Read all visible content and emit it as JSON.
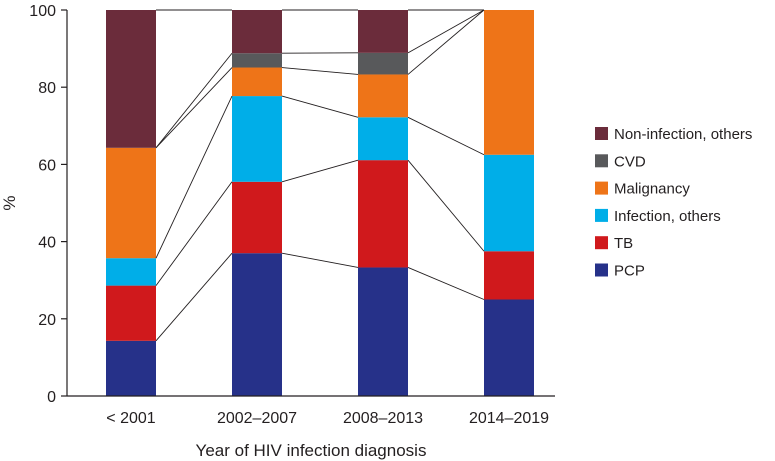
{
  "chart_data": {
    "type": "bar",
    "stacked": true,
    "categories": [
      "< 2001",
      "2002–2007",
      "2008–2013",
      "2014–2019"
    ],
    "series": [
      {
        "name": "PCP",
        "color": "#263189",
        "values": [
          14.3,
          37.0,
          33.3,
          25.0
        ]
      },
      {
        "name": "TB",
        "color": "#d0191c",
        "values": [
          14.3,
          18.5,
          27.8,
          12.5
        ]
      },
      {
        "name": "Infection, others",
        "color": "#00aee8",
        "values": [
          7.1,
          22.2,
          11.1,
          25.0
        ]
      },
      {
        "name": "Malignancy",
        "color": "#ee7418",
        "values": [
          28.6,
          7.4,
          11.1,
          37.5
        ]
      },
      {
        "name": "CVD",
        "color": "#58595b",
        "values": [
          0,
          3.7,
          5.6,
          0
        ]
      },
      {
        "name": "Non-infection, others",
        "color": "#6b2c3b",
        "values": [
          35.7,
          11.2,
          11.1,
          0
        ]
      }
    ],
    "legend_order": [
      "Non-infection, others",
      "CVD",
      "Malignancy",
      "Infection, others",
      "TB",
      "PCP"
    ],
    "title": "",
    "xlabel": "Year of HIV infection diagnosis",
    "ylabel": "%",
    "ylim": [
      0,
      100
    ],
    "yticks": [
      0,
      20,
      40,
      60,
      80,
      100
    ],
    "connector_lines": true,
    "legend_position": "right"
  }
}
